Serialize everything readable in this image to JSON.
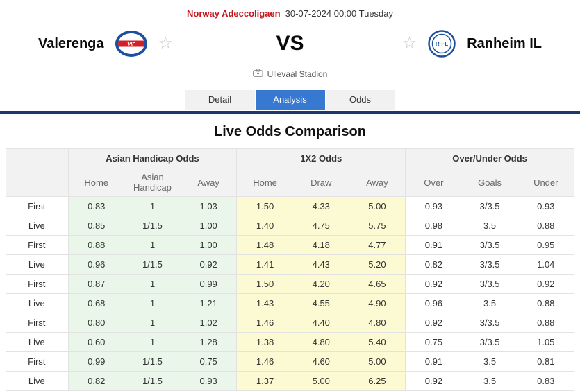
{
  "header": {
    "league": "Norway Adeccoligaen",
    "datetime": "30-07-2024 00:00 Tuesday",
    "home_team": "Valerenga",
    "away_team": "Ranheim IL",
    "vs": "VS",
    "venue": "Ullevaal Stadion",
    "home_logo_text": "VIF",
    "away_logo_text": "R·I·L",
    "favorite_star": "☆"
  },
  "tabs": [
    {
      "label": "Detail",
      "active": false
    },
    {
      "label": "Analysis",
      "active": true
    },
    {
      "label": "Odds",
      "active": false
    }
  ],
  "section_title": "Live Odds Comparison",
  "odds_table": {
    "groups": [
      "Asian Handicap Odds",
      "1X2 Odds",
      "Over/Under Odds"
    ],
    "columns": [
      "Home",
      "Asian Handicap",
      "Away",
      "Home",
      "Draw",
      "Away",
      "Over",
      "Goals",
      "Under"
    ],
    "rows": [
      {
        "label": "First",
        "cells": [
          "0.83",
          "1",
          "1.03",
          "1.50",
          "4.33",
          "5.00",
          "0.93",
          "3/3.5",
          "0.93"
        ]
      },
      {
        "label": "Live",
        "cells": [
          "0.85",
          "1/1.5",
          "1.00",
          "1.40",
          "4.75",
          "5.75",
          "0.98",
          "3.5",
          "0.88"
        ]
      },
      {
        "label": "First",
        "cells": [
          "0.88",
          "1",
          "1.00",
          "1.48",
          "4.18",
          "4.77",
          "0.91",
          "3/3.5",
          "0.95"
        ]
      },
      {
        "label": "Live",
        "cells": [
          "0.96",
          "1/1.5",
          "0.92",
          "1.41",
          "4.43",
          "5.20",
          "0.82",
          "3/3.5",
          "1.04"
        ]
      },
      {
        "label": "First",
        "cells": [
          "0.87",
          "1",
          "0.99",
          "1.50",
          "4.20",
          "4.65",
          "0.92",
          "3/3.5",
          "0.92"
        ]
      },
      {
        "label": "Live",
        "cells": [
          "0.68",
          "1",
          "1.21",
          "1.43",
          "4.55",
          "4.90",
          "0.96",
          "3.5",
          "0.88"
        ]
      },
      {
        "label": "First",
        "cells": [
          "0.80",
          "1",
          "1.02",
          "1.46",
          "4.40",
          "4.80",
          "0.92",
          "3/3.5",
          "0.88"
        ]
      },
      {
        "label": "Live",
        "cells": [
          "0.60",
          "1",
          "1.28",
          "1.38",
          "4.80",
          "5.40",
          "0.75",
          "3/3.5",
          "1.05"
        ]
      },
      {
        "label": "First",
        "cells": [
          "0.99",
          "1/1.5",
          "0.75",
          "1.46",
          "4.60",
          "5.00",
          "0.91",
          "3.5",
          "0.81"
        ]
      },
      {
        "label": "Live",
        "cells": [
          "0.82",
          "1/1.5",
          "0.93",
          "1.37",
          "5.00",
          "6.25",
          "0.92",
          "3.5",
          "0.83"
        ]
      }
    ]
  },
  "colors": {
    "league_red": "#c4161c",
    "tab_active_blue": "#3778d0",
    "divider_navy": "#1b3a6b",
    "ah_green_bg": "#e9f6e9",
    "x12_yellow_bg": "#fbfad3",
    "header_gray_bg": "#f2f2f2",
    "border_gray": "#e2e2e2",
    "star_gray": "#c8c8c8"
  }
}
